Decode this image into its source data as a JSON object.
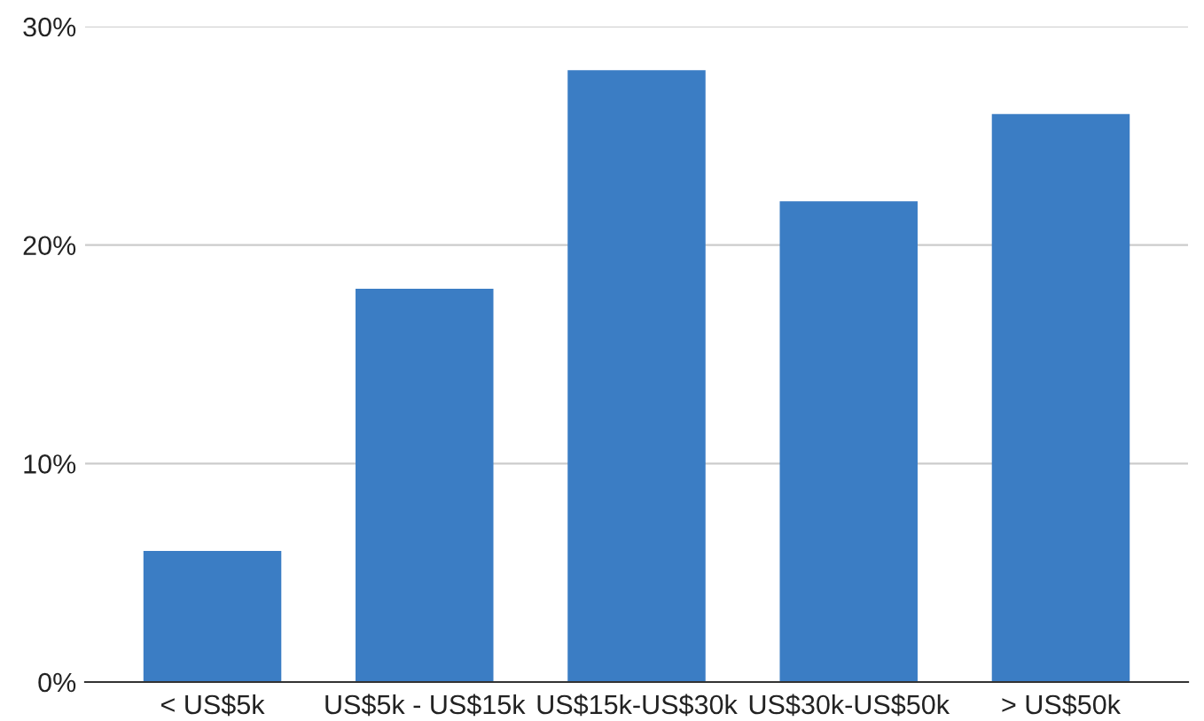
{
  "chart_data": {
    "type": "bar",
    "categories": [
      "< US$5k",
      "US$5k - US$15k",
      "US$15k-US$30k",
      "US$30k-US$50k",
      "> US$50k"
    ],
    "values": [
      6,
      18,
      28,
      22,
      26
    ],
    "color": "#3b7dc4",
    "ylim": [
      0,
      30
    ],
    "yticks": [
      {
        "value": 0,
        "label": "0%"
      },
      {
        "value": 10,
        "label": "10%"
      },
      {
        "value": 20,
        "label": "20%"
      },
      {
        "value": 30,
        "label": "30%"
      }
    ],
    "grid": "y"
  }
}
